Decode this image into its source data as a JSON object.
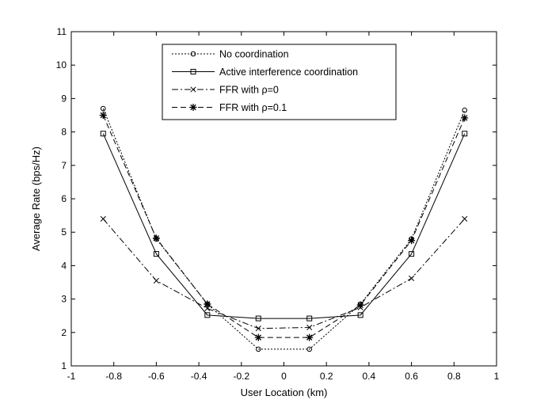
{
  "chart_data": {
    "type": "line",
    "title": "",
    "xlabel": "User Location (km)",
    "ylabel": "Average Rate (bps/Hz)",
    "xlim": [
      -1,
      1
    ],
    "ylim": [
      1,
      11
    ],
    "xticks": [
      "-1",
      "-0.8",
      "-0.6",
      "-0.4",
      "-0.2",
      "0",
      "0.2",
      "0.4",
      "0.6",
      "0.8",
      "1"
    ],
    "yticks": [
      "1",
      "2",
      "3",
      "4",
      "5",
      "6",
      "7",
      "8",
      "9",
      "10",
      "11"
    ],
    "grid": false,
    "legend_position": "top-center",
    "x": [
      -0.85,
      -0.6,
      -0.36,
      -0.12,
      0.12,
      0.36,
      0.6,
      0.85
    ],
    "series": [
      {
        "name": "No coordination",
        "line_style": "dotted",
        "marker": "circle",
        "values": [
          8.7,
          4.8,
          2.85,
          1.5,
          1.5,
          2.85,
          4.8,
          8.65
        ]
      },
      {
        "name": "Active interference coordination",
        "line_style": "solid",
        "marker": "square",
        "values": [
          7.95,
          4.35,
          2.52,
          2.42,
          2.42,
          2.52,
          4.35,
          7.95
        ]
      },
      {
        "name": "FFR with ρ=0",
        "line_style": "dashdot",
        "marker": "x",
        "values": [
          5.4,
          3.55,
          2.72,
          2.12,
          2.15,
          2.75,
          3.62,
          5.4
        ]
      },
      {
        "name": "FFR with ρ=0.1",
        "line_style": "dashed",
        "marker": "star",
        "values": [
          8.5,
          4.82,
          2.85,
          1.85,
          1.85,
          2.82,
          4.75,
          8.42
        ]
      }
    ]
  }
}
